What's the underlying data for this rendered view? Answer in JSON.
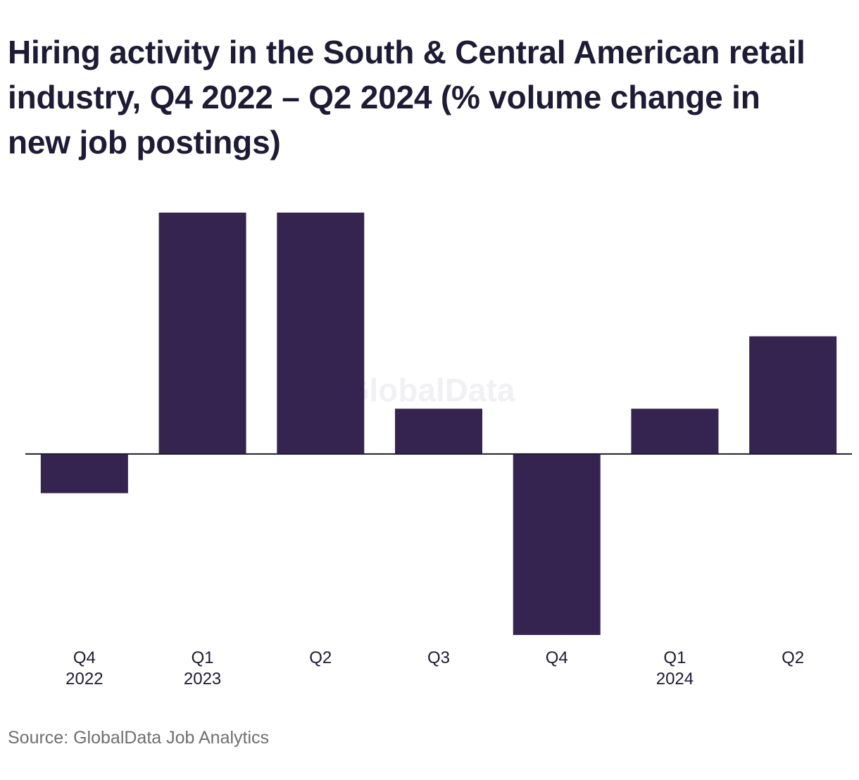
{
  "chart_data": {
    "type": "bar",
    "title": "Hiring activity in the South & Central American retail industry, Q4 2022 – Q2 2024 (% volume change in new job postings)",
    "categories": [
      {
        "quarter": "Q4",
        "year": "2022"
      },
      {
        "quarter": "Q1",
        "year": "2023"
      },
      {
        "quarter": "Q2",
        "year": ""
      },
      {
        "quarter": "Q3",
        "year": ""
      },
      {
        "quarter": "Q4",
        "year": ""
      },
      {
        "quarter": "Q1",
        "year": "2024"
      },
      {
        "quarter": "Q2",
        "year": ""
      }
    ],
    "values": [
      -6.5,
      40,
      40,
      7.5,
      -30,
      7.5,
      19.5
    ],
    "ylim": [
      -30,
      40
    ],
    "grid": false,
    "bar_color": "#35244f",
    "watermark": "GlobalData",
    "source": "Source: GlobalData Job Analytics"
  }
}
